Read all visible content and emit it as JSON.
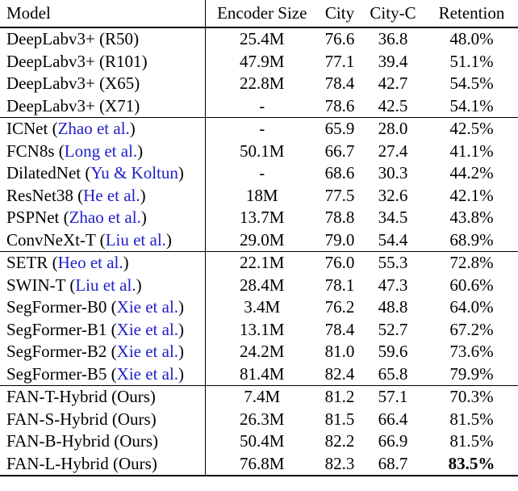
{
  "table": {
    "columns": [
      {
        "key": "model",
        "label": "Model"
      },
      {
        "key": "encoder_size",
        "label": "Encoder Size"
      },
      {
        "key": "city",
        "label": "City"
      },
      {
        "key": "city_c",
        "label": "City-C"
      },
      {
        "key": "retention",
        "label": "Retention"
      }
    ],
    "groups": [
      {
        "name": "deeplab-baselines",
        "rows": [
          {
            "model": "DeepLabv3+",
            "paren": "R50",
            "paren_citation": false,
            "encoder_size": "25.4M",
            "city": "76.6",
            "city_c": "36.8",
            "retention": "48.0%",
            "retention_bold": false
          },
          {
            "model": "DeepLabv3+",
            "paren": "R101",
            "paren_citation": false,
            "encoder_size": "47.9M",
            "city": "77.1",
            "city_c": "39.4",
            "retention": "51.1%",
            "retention_bold": false
          },
          {
            "model": "DeepLabv3+",
            "paren": "X65",
            "paren_citation": false,
            "encoder_size": "22.8M",
            "city": "78.4",
            "city_c": "42.7",
            "retention": "54.5%",
            "retention_bold": false
          },
          {
            "model": "DeepLabv3+",
            "paren": "X71",
            "paren_citation": false,
            "encoder_size": "-",
            "city": "78.6",
            "city_c": "42.5",
            "retention": "54.1%",
            "retention_bold": false
          }
        ]
      },
      {
        "name": "cnn-baselines",
        "rows": [
          {
            "model": "ICNet",
            "paren": "Zhao et al.",
            "paren_citation": true,
            "encoder_size": "-",
            "city": "65.9",
            "city_c": "28.0",
            "retention": "42.5%",
            "retention_bold": false
          },
          {
            "model": "FCN8s",
            "paren": "Long et al.",
            "paren_citation": true,
            "encoder_size": "50.1M",
            "city": "66.7",
            "city_c": "27.4",
            "retention": "41.1%",
            "retention_bold": false
          },
          {
            "model": "DilatedNet",
            "paren": "Yu & Koltun",
            "paren_citation": true,
            "encoder_size": "-",
            "city": "68.6",
            "city_c": "30.3",
            "retention": "44.2%",
            "retention_bold": false
          },
          {
            "model": "ResNet38",
            "paren": "He et al.",
            "paren_citation": true,
            "encoder_size": "18M",
            "city": "77.5",
            "city_c": "32.6",
            "retention": "42.1%",
            "retention_bold": false
          },
          {
            "model": "PSPNet",
            "paren": "Zhao et al.",
            "paren_citation": true,
            "encoder_size": "13.7M",
            "city": "78.8",
            "city_c": "34.5",
            "retention": "43.8%",
            "retention_bold": false
          },
          {
            "model": "ConvNeXt-T",
            "paren": "Liu et al.",
            "paren_citation": true,
            "encoder_size": "29.0M",
            "city": "79.0",
            "city_c": "54.4",
            "retention": "68.9%",
            "retention_bold": false
          }
        ]
      },
      {
        "name": "transformer-baselines",
        "rows": [
          {
            "model": "SETR",
            "paren": "Heo et al.",
            "paren_citation": true,
            "encoder_size": "22.1M",
            "city": "76.0",
            "city_c": "55.3",
            "retention": "72.8%",
            "retention_bold": false
          },
          {
            "model": "SWIN-T",
            "paren": "Liu et al.",
            "paren_citation": true,
            "encoder_size": "28.4M",
            "city": "78.1",
            "city_c": "47.3",
            "retention": "60.6%",
            "retention_bold": false
          },
          {
            "model": "SegFormer-B0",
            "paren": "Xie et al.",
            "paren_citation": true,
            "encoder_size": "3.4M",
            "city": "76.2",
            "city_c": "48.8",
            "retention": "64.0%",
            "retention_bold": false
          },
          {
            "model": "SegFormer-B1",
            "paren": "Xie et al.",
            "paren_citation": true,
            "encoder_size": "13.1M",
            "city": "78.4",
            "city_c": "52.7",
            "retention": "67.2%",
            "retention_bold": false
          },
          {
            "model": "SegFormer-B2",
            "paren": "Xie et al.",
            "paren_citation": true,
            "encoder_size": "24.2M",
            "city": "81.0",
            "city_c": "59.6",
            "retention": "73.6%",
            "retention_bold": false
          },
          {
            "model": "SegFormer-B5",
            "paren": "Xie et al.",
            "paren_citation": true,
            "encoder_size": "81.4M",
            "city": "82.4",
            "city_c": "65.8",
            "retention": "79.9%",
            "retention_bold": false
          }
        ]
      },
      {
        "name": "fan-hybrid-ours",
        "rows": [
          {
            "model": "FAN-T-Hybrid",
            "paren": "Ours",
            "paren_citation": false,
            "encoder_size": "7.4M",
            "city": "81.2",
            "city_c": "57.1",
            "retention": "70.3%",
            "retention_bold": false
          },
          {
            "model": "FAN-S-Hybrid",
            "paren": "Ours",
            "paren_citation": false,
            "encoder_size": "26.3M",
            "city": "81.5",
            "city_c": "66.4",
            "retention": "81.5%",
            "retention_bold": false
          },
          {
            "model": "FAN-B-Hybrid",
            "paren": "Ours",
            "paren_citation": false,
            "encoder_size": "50.4M",
            "city": "82.2",
            "city_c": "66.9",
            "retention": "81.5%",
            "retention_bold": false
          },
          {
            "model": "FAN-L-Hybrid",
            "paren": "Ours",
            "paren_citation": false,
            "encoder_size": "76.8M",
            "city": "82.3",
            "city_c": "68.7",
            "retention": "83.5%",
            "retention_bold": true
          }
        ]
      }
    ]
  },
  "colors": {
    "citation": "#2121cc",
    "text": "#000000",
    "rule": "#000000",
    "background": "#ffffff"
  }
}
